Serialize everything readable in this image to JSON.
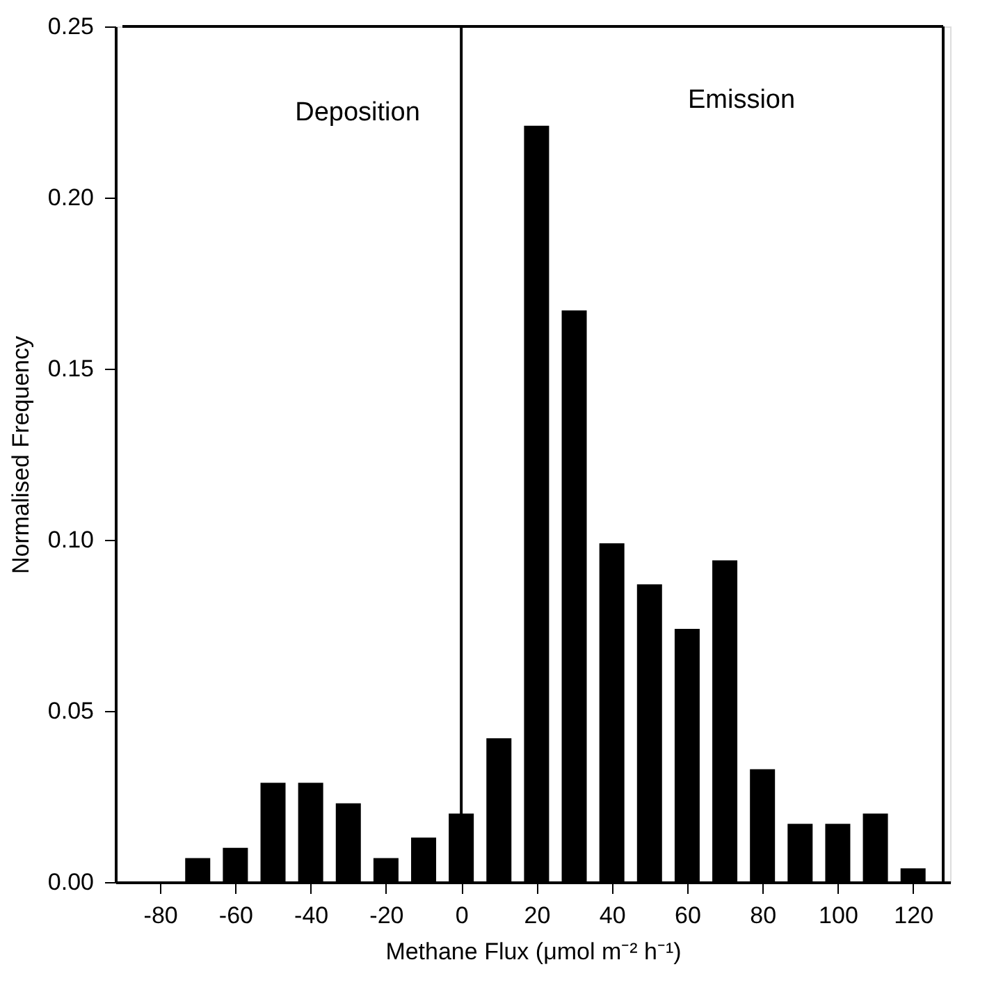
{
  "chart_data": {
    "type": "bar",
    "xlabel": "Methane Flux (μmol m⁻² h⁻¹)",
    "ylabel": "Normalised Frequency",
    "x": [
      -80,
      -70,
      -60,
      -50,
      -40,
      -30,
      -20,
      -10,
      0,
      10,
      20,
      30,
      40,
      50,
      60,
      70,
      80,
      90,
      100,
      110,
      120
    ],
    "values": [
      0,
      0.007,
      0.01,
      0.029,
      0.029,
      0.023,
      0.007,
      0.013,
      0.02,
      0.042,
      0.221,
      0.167,
      0.099,
      0.087,
      0.074,
      0.094,
      0.033,
      0.017,
      0.017,
      0.02,
      0.004
    ],
    "color": "#000000",
    "xlim": [
      -90,
      128
    ],
    "xticks": [
      -80,
      -60,
      -40,
      -20,
      0,
      20,
      40,
      60,
      80,
      100,
      120
    ],
    "ylim": [
      0,
      0.25
    ],
    "yticks": [
      {
        "value": 0,
        "label": "0.00"
      },
      {
        "value": 0.05,
        "label": "0.05"
      },
      {
        "value": 0.1,
        "label": "0.10"
      },
      {
        "value": 0.15,
        "label": "0.15"
      },
      {
        "value": 0.2,
        "label": "0.20"
      },
      {
        "value": 0.25,
        "label": "0.25"
      }
    ],
    "ref_lines": [
      {
        "axis": "x",
        "value": 0
      }
    ],
    "annotations": [
      "Deposition",
      "Emission"
    ],
    "grid": false
  }
}
